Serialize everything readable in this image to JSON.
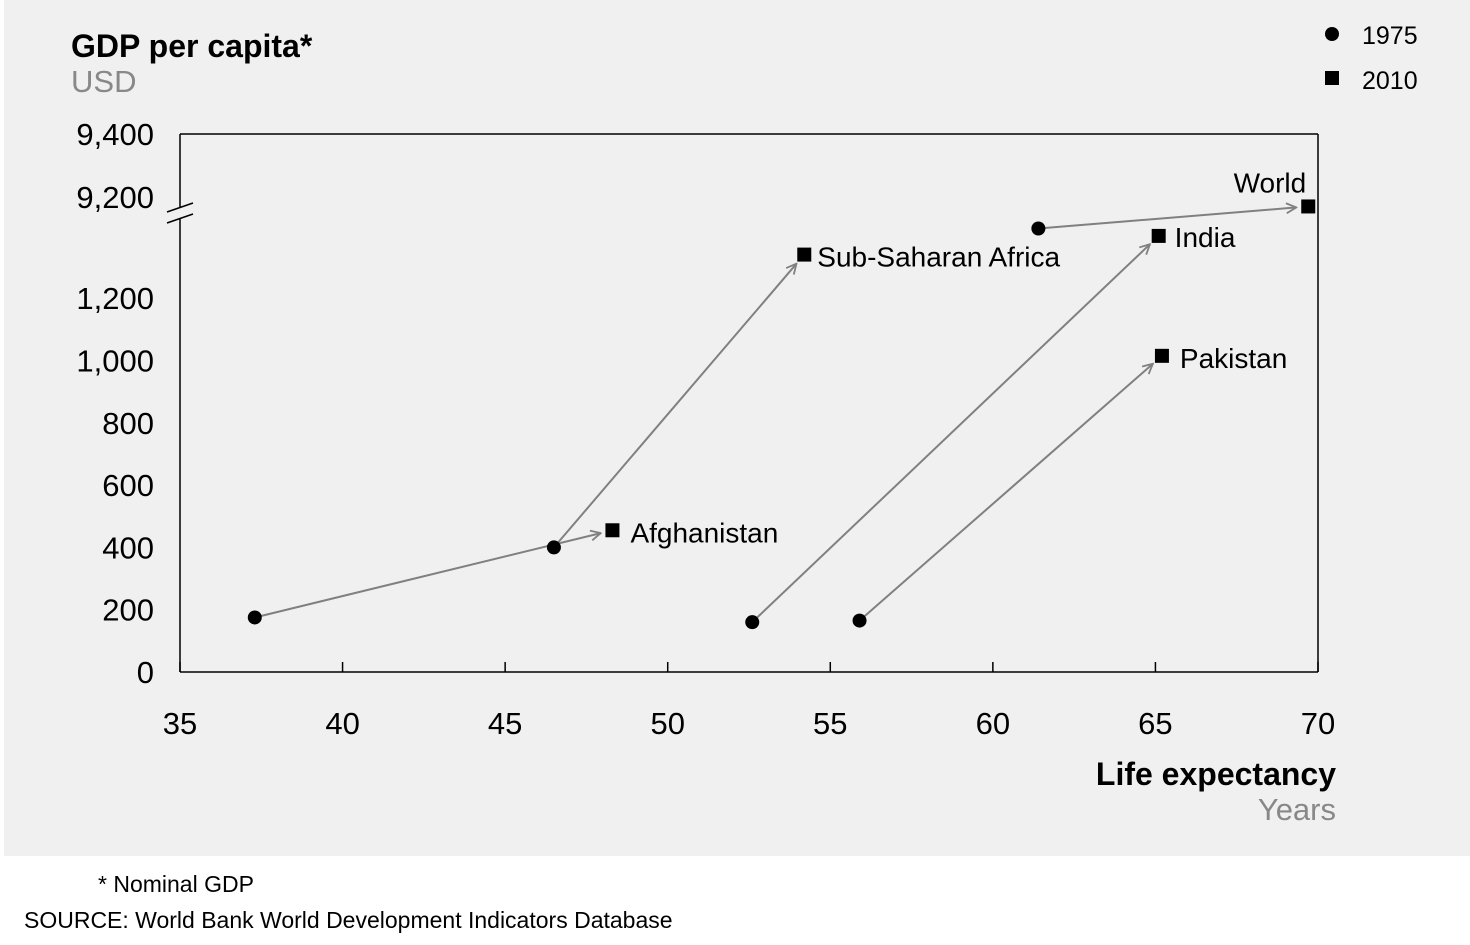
{
  "chart_data": {
    "type": "scatter",
    "title": "GDP per capita*",
    "subtitle": "USD",
    "xlabel": "Life expectancy",
    "xlabel_unit": "Years",
    "xlim": [
      35,
      70
    ],
    "x_ticks": [
      "35",
      "40",
      "45",
      "50",
      "55",
      "60",
      "65",
      "70"
    ],
    "y_ticks_lower": [
      "0",
      "200",
      "400",
      "600",
      "800",
      "1,000",
      "1,200"
    ],
    "y_ticks_upper": [
      "9,200",
      "9,400"
    ],
    "y_axis_break": true,
    "legend": [
      {
        "label": "1975",
        "marker": "circle"
      },
      {
        "label": "2010",
        "marker": "square"
      }
    ],
    "legend_position": "top-right",
    "series": [
      {
        "name": "1975",
        "marker": "circle",
        "color": "#000000"
      },
      {
        "name": "2010",
        "marker": "square",
        "color": "#000000"
      }
    ],
    "countries": [
      {
        "label": "Afghanistan",
        "from": {
          "x": 37.3,
          "y": 175
        },
        "to": {
          "x": 48.3,
          "y": 455
        }
      },
      {
        "label": "",
        "from": {
          "x": 46.5,
          "y": 400
        },
        "to": {
          "x": 54.2,
          "y": 1340
        }
      },
      {
        "label": "Sub-Saharan Africa",
        "from": null,
        "to": null
      },
      {
        "label": "India",
        "from": {
          "x": 52.6,
          "y": 160
        },
        "to": {
          "x": 65.1,
          "y": 1400
        }
      },
      {
        "label": "Pakistan",
        "from": {
          "x": 55.9,
          "y": 165
        },
        "to": {
          "x": 65.2,
          "y": 1015
        }
      },
      {
        "label": "World",
        "from": {
          "x": 61.4,
          "y": 9100
        },
        "to": {
          "x": 69.7,
          "y": 9170
        }
      }
    ],
    "arrow_color": "#808080"
  },
  "footnote": "* Nominal GDP",
  "source": "SOURCE: World Bank World Development Indicators Database"
}
